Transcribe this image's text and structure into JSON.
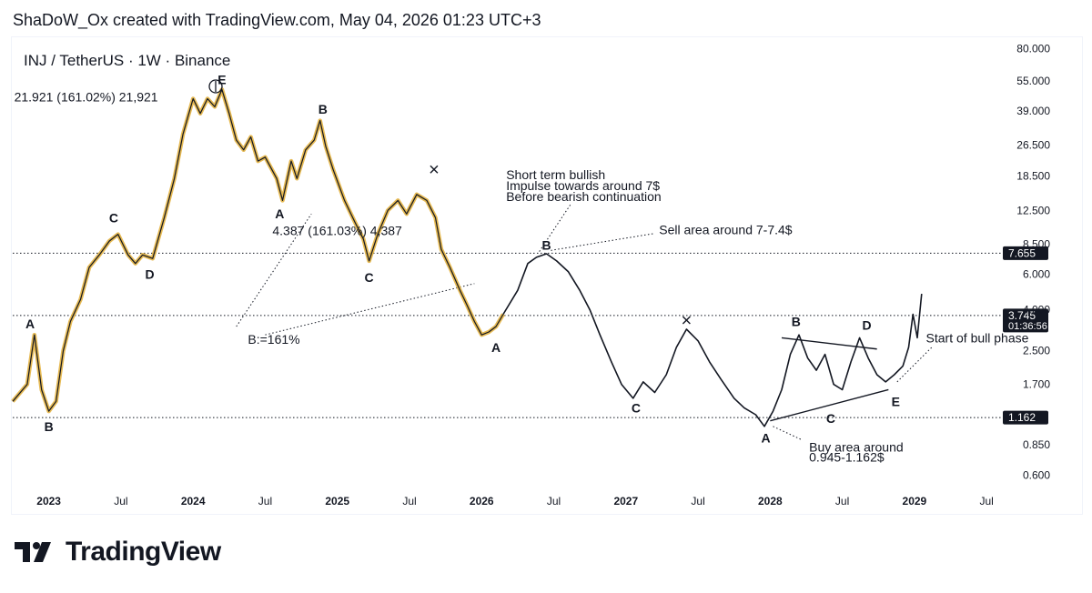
{
  "header": {
    "credit": "ShaDoW_Ox created with TradingView.com, May 04, 2026 01:23 UTC+3"
  },
  "chart_data": {
    "type": "line",
    "title": "INJ / TetherUS · 1W · Binance",
    "scale": "log",
    "ylim": [
      0.5,
      90
    ],
    "xlim": [
      2022.75,
      2029.6
    ],
    "y_ticks": [
      "80.000",
      "55.000",
      "39.000",
      "26.500",
      "18.500",
      "12.500",
      "8.500",
      "6.000",
      "4.000",
      "2.500",
      "1.700",
      "1.162",
      "0.850",
      "0.600"
    ],
    "y_tick_values": [
      80,
      55,
      39,
      26.5,
      18.5,
      12.5,
      8.5,
      6,
      4,
      2.5,
      1.7,
      1.162,
      0.85,
      0.6
    ],
    "x_ticks": [
      {
        "label": "2023",
        "t": 2023.0
      },
      {
        "label": "Jul",
        "t": 2023.5
      },
      {
        "label": "2024",
        "t": 2024.0
      },
      {
        "label": "Jul",
        "t": 2024.5
      },
      {
        "label": "2025",
        "t": 2025.0
      },
      {
        "label": "Jul",
        "t": 2025.5
      },
      {
        "label": "2026",
        "t": 2026.0
      },
      {
        "label": "Jul",
        "t": 2026.5
      },
      {
        "label": "2027",
        "t": 2027.0
      },
      {
        "label": "Jul",
        "t": 2027.5
      },
      {
        "label": "2028",
        "t": 2028.0
      },
      {
        "label": "Jul",
        "t": 2028.5
      },
      {
        "label": "2029",
        "t": 2029.0
      },
      {
        "label": "Jul",
        "t": 2029.5
      }
    ],
    "historical_price": [
      [
        2022.75,
        1.4
      ],
      [
        2022.85,
        1.7
      ],
      [
        2022.9,
        3.0
      ],
      [
        2022.95,
        1.6
      ],
      [
        2023.0,
        1.25
      ],
      [
        2023.05,
        1.4
      ],
      [
        2023.1,
        2.5
      ],
      [
        2023.15,
        3.5
      ],
      [
        2023.22,
        4.5
      ],
      [
        2023.28,
        6.5
      ],
      [
        2023.35,
        7.5
      ],
      [
        2023.42,
        8.8
      ],
      [
        2023.48,
        9.5
      ],
      [
        2023.55,
        7.5
      ],
      [
        2023.6,
        6.8
      ],
      [
        2023.65,
        7.5
      ],
      [
        2023.72,
        7.2
      ],
      [
        2023.8,
        11.5
      ],
      [
        2023.87,
        18.0
      ],
      [
        2023.93,
        30.0
      ],
      [
        2024.0,
        45.0
      ],
      [
        2024.05,
        38.0
      ],
      [
        2024.1,
        45.0
      ],
      [
        2024.15,
        41.0
      ],
      [
        2024.2,
        50.0
      ],
      [
        2024.25,
        38.0
      ],
      [
        2024.3,
        28.0
      ],
      [
        2024.35,
        25.0
      ],
      [
        2024.4,
        29.0
      ],
      [
        2024.45,
        22.0
      ],
      [
        2024.5,
        23.0
      ],
      [
        2024.58,
        18.0
      ],
      [
        2024.62,
        14.0
      ],
      [
        2024.68,
        22.0
      ],
      [
        2024.72,
        18.0
      ],
      [
        2024.78,
        25.0
      ],
      [
        2024.84,
        28.0
      ],
      [
        2024.88,
        35.0
      ],
      [
        2024.92,
        26.0
      ],
      [
        2024.97,
        20.0
      ],
      [
        2025.05,
        14.0
      ],
      [
        2025.12,
        11.0
      ],
      [
        2025.18,
        9.0
      ],
      [
        2025.22,
        7.0
      ],
      [
        2025.28,
        9.5
      ],
      [
        2025.35,
        12.5
      ],
      [
        2025.42,
        14.0
      ],
      [
        2025.48,
        12.0
      ],
      [
        2025.55,
        15.0
      ],
      [
        2025.62,
        14.0
      ],
      [
        2025.68,
        11.5
      ],
      [
        2025.72,
        8.0
      ],
      [
        2025.78,
        6.5
      ],
      [
        2025.85,
        5.0
      ],
      [
        2025.9,
        4.2
      ],
      [
        2025.95,
        3.5
      ],
      [
        2026.0,
        3.0
      ],
      [
        2026.05,
        3.1
      ],
      [
        2026.1,
        3.3
      ],
      [
        2026.15,
        3.8
      ]
    ],
    "projected_path": [
      [
        2026.15,
        3.8
      ],
      [
        2026.25,
        5.0
      ],
      [
        2026.32,
        6.8
      ],
      [
        2026.38,
        7.3
      ],
      [
        2026.45,
        7.6
      ],
      [
        2026.52,
        7.0
      ],
      [
        2026.6,
        6.2
      ],
      [
        2026.68,
        5.0
      ],
      [
        2026.75,
        4.0
      ],
      [
        2026.82,
        3.0
      ],
      [
        2026.9,
        2.2
      ],
      [
        2026.97,
        1.7
      ],
      [
        2027.05,
        1.45
      ],
      [
        2027.12,
        1.75
      ],
      [
        2027.2,
        1.55
      ],
      [
        2027.28,
        1.9
      ],
      [
        2027.35,
        2.6
      ],
      [
        2027.42,
        3.2
      ],
      [
        2027.5,
        2.8
      ],
      [
        2027.58,
        2.2
      ],
      [
        2027.66,
        1.8
      ],
      [
        2027.75,
        1.45
      ],
      [
        2027.82,
        1.3
      ],
      [
        2027.9,
        1.2
      ],
      [
        2027.96,
        1.05
      ],
      [
        2028.02,
        1.25
      ],
      [
        2028.08,
        1.6
      ],
      [
        2028.14,
        2.4
      ],
      [
        2028.2,
        3.0
      ],
      [
        2028.26,
        2.3
      ],
      [
        2028.32,
        2.0
      ],
      [
        2028.38,
        2.4
      ],
      [
        2028.44,
        1.7
      ],
      [
        2028.5,
        1.6
      ],
      [
        2028.56,
        2.2
      ],
      [
        2028.62,
        2.9
      ],
      [
        2028.68,
        2.3
      ],
      [
        2028.74,
        1.9
      ],
      [
        2028.8,
        1.75
      ],
      [
        2028.86,
        1.9
      ],
      [
        2028.92,
        2.1
      ],
      [
        2028.96,
        2.6
      ],
      [
        2028.99,
        3.8
      ],
      [
        2029.02,
        2.9
      ],
      [
        2029.05,
        4.8
      ]
    ],
    "horizontal_levels": [
      {
        "value": 7.655,
        "label": "7.655"
      },
      {
        "value": 3.745,
        "label": "3.745",
        "sublabel": "01:36:56"
      },
      {
        "value": 1.162,
        "label": "1.162"
      }
    ],
    "wave_labels": [
      {
        "text": "A",
        "t": 2022.87,
        "v": 3.4
      },
      {
        "text": "B",
        "t": 2023.0,
        "v": 1.05
      },
      {
        "text": "C",
        "t": 2023.45,
        "v": 11.5
      },
      {
        "text": "D",
        "t": 2023.7,
        "v": 6.0
      },
      {
        "text": "E",
        "t": 2024.2,
        "v": 56.0
      },
      {
        "text": "A",
        "t": 2024.6,
        "v": 12.0
      },
      {
        "text": "B",
        "t": 2024.9,
        "v": 40.0
      },
      {
        "text": "C",
        "t": 2025.22,
        "v": 5.8
      },
      {
        "text": "A",
        "t": 2026.1,
        "v": 2.6
      },
      {
        "text": "B",
        "t": 2026.45,
        "v": 8.4
      },
      {
        "text": "C",
        "t": 2027.07,
        "v": 1.3
      },
      {
        "text": "A",
        "t": 2027.97,
        "v": 0.92
      },
      {
        "text": "B",
        "t": 2028.18,
        "v": 3.5
      },
      {
        "text": "C",
        "t": 2028.42,
        "v": 1.15
      },
      {
        "text": "D",
        "t": 2028.67,
        "v": 3.35
      },
      {
        "text": "E",
        "t": 2028.87,
        "v": 1.4
      }
    ],
    "annotations": [
      {
        "text": "21.921 (161.02%) 21,921",
        "t": 2022.76,
        "v": 46.0,
        "anchor": "start"
      },
      {
        "text": "4.387 (161.03%) 4,387",
        "t": 2024.55,
        "v": 9.9,
        "anchor": "start"
      },
      {
        "text": "B:=161%",
        "t": 2024.38,
        "v": 2.85,
        "anchor": "start"
      },
      {
        "text": "Short term bullish",
        "t": 2026.17,
        "v": 18.8,
        "anchor": "start"
      },
      {
        "text": "Impulse towards around 7$",
        "t": 2026.17,
        "v": 16.6,
        "anchor": "start"
      },
      {
        "text": "Before bearish continuation",
        "t": 2026.17,
        "v": 14.7,
        "anchor": "start"
      },
      {
        "text": "Sell area around 7-7.4$",
        "t": 2027.23,
        "v": 10.0,
        "anchor": "start"
      },
      {
        "text": "Start of bull phase",
        "t": 2029.08,
        "v": 2.9,
        "anchor": "start"
      },
      {
        "text": "Buy area around",
        "t": 2028.27,
        "v": 0.83,
        "anchor": "start"
      },
      {
        "text": "0.945-1.162$",
        "t": 2028.27,
        "v": 0.74,
        "anchor": "start"
      }
    ],
    "x_markers": [
      {
        "t": 2025.67,
        "v": 20.0
      },
      {
        "t": 2027.42,
        "v": 3.55
      }
    ]
  }
}
